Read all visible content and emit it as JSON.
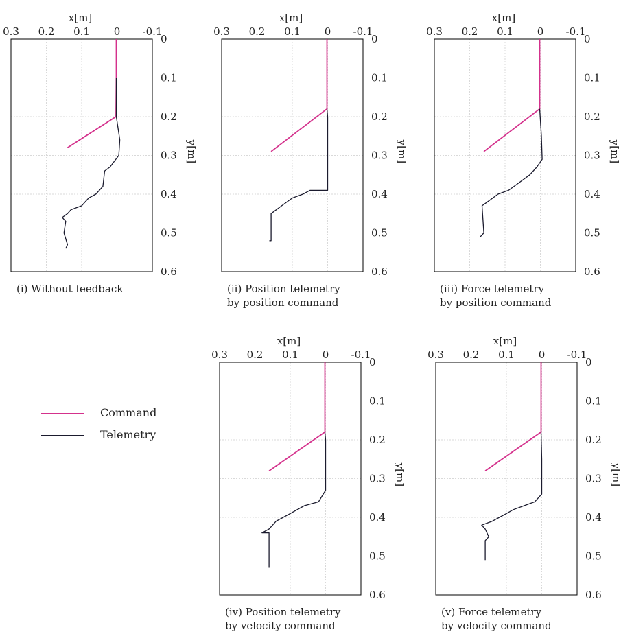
{
  "legend": {
    "command_label": "Command",
    "telemetry_label": "Telemetry"
  },
  "colors": {
    "command": "#d4318c",
    "telemetry": "#1b1b2e",
    "grid": "#d9d9d9",
    "axis": "#000000"
  },
  "chart_data": [
    {
      "type": "line",
      "caption": [
        "(i) Without feedback"
      ],
      "xlabel": "x[m]",
      "ylabel": "y[m]",
      "xlim": [
        0.3,
        -0.1
      ],
      "ylim": [
        0,
        0.6
      ],
      "x_ticks": [
        "0.3",
        "0.2",
        "0.1",
        "0",
        "-0.1"
      ],
      "y_ticks": [
        "0",
        "0.1",
        "0.2",
        "0.3",
        "0.4",
        "0.5",
        "0.6"
      ],
      "series": [
        {
          "role": "command",
          "points": [
            [
              0.002,
              0
            ],
            [
              0.002,
              0.1
            ],
            [
              0.003,
              0.2
            ],
            [
              0.14,
              0.28
            ]
          ]
        },
        {
          "role": "telemetry",
          "points": [
            [
              0.002,
              0.1
            ],
            [
              0.002,
              0.2
            ],
            [
              -0.008,
              0.26
            ],
            [
              -0.005,
              0.3
            ],
            [
              0.02,
              0.33
            ],
            [
              0.035,
              0.34
            ],
            [
              0.04,
              0.38
            ],
            [
              0.06,
              0.4
            ],
            [
              0.08,
              0.41
            ],
            [
              0.1,
              0.43
            ],
            [
              0.13,
              0.44
            ],
            [
              0.14,
              0.45
            ],
            [
              0.155,
              0.46
            ],
            [
              0.145,
              0.47
            ],
            [
              0.15,
              0.5
            ],
            [
              0.14,
              0.53
            ],
            [
              0.145,
              0.54
            ]
          ]
        }
      ]
    },
    {
      "type": "line",
      "caption": [
        "(ii) Position telemetry",
        "by position command"
      ],
      "xlabel": "x[m]",
      "ylabel": "y[m]",
      "xlim": [
        0.3,
        -0.1
      ],
      "ylim": [
        0,
        0.6
      ],
      "x_ticks": [
        "0.3",
        "0.2",
        "0.1",
        "0",
        "-0.1"
      ],
      "y_ticks": [
        "0",
        "0.1",
        "0.2",
        "0.3",
        "0.4",
        "0.5",
        "0.6"
      ],
      "series": [
        {
          "role": "command",
          "points": [
            [
              0.002,
              0
            ],
            [
              0.002,
              0.18
            ],
            [
              0.16,
              0.29
            ]
          ]
        },
        {
          "role": "telemetry",
          "points": [
            [
              0.002,
              0.18
            ],
            [
              0.0,
              0.2
            ],
            [
              0.0,
              0.39
            ],
            [
              0.05,
              0.39
            ],
            [
              0.07,
              0.4
            ],
            [
              0.1,
              0.41
            ],
            [
              0.13,
              0.43
            ],
            [
              0.16,
              0.45
            ],
            [
              0.16,
              0.52
            ],
            [
              0.165,
              0.52
            ]
          ]
        }
      ]
    },
    {
      "type": "line",
      "caption": [
        "(iii) Force telemetry",
        "by position command"
      ],
      "xlabel": "x[m]",
      "ylabel": "y[m]",
      "xlim": [
        0.3,
        -0.1
      ],
      "ylim": [
        0,
        0.6
      ],
      "x_ticks": [
        "0.3",
        "0.2",
        "0.1",
        "0",
        "-0.1"
      ],
      "y_ticks": [
        "0",
        "0.1",
        "0.2",
        "0.3",
        "0.4",
        "0.5",
        "0.6"
      ],
      "series": [
        {
          "role": "command",
          "points": [
            [
              0.002,
              0
            ],
            [
              0.002,
              0.18
            ],
            [
              0.16,
              0.29
            ]
          ]
        },
        {
          "role": "telemetry",
          "points": [
            [
              0.002,
              0.18
            ],
            [
              -0.003,
              0.25
            ],
            [
              -0.005,
              0.31
            ],
            [
              0.01,
              0.33
            ],
            [
              0.03,
              0.35
            ],
            [
              0.06,
              0.37
            ],
            [
              0.09,
              0.39
            ],
            [
              0.12,
              0.4
            ],
            [
              0.15,
              0.42
            ],
            [
              0.165,
              0.43
            ],
            [
              0.16,
              0.5
            ],
            [
              0.17,
              0.51
            ]
          ]
        }
      ]
    },
    {
      "type": "line",
      "caption": [
        "(iv) Position telemetry",
        "by velocity command"
      ],
      "xlabel": "x[m]",
      "ylabel": "y[m]",
      "xlim": [
        0.3,
        -0.1
      ],
      "ylim": [
        0,
        0.6
      ],
      "x_ticks": [
        "0.3",
        "0.2",
        "0.1",
        "0",
        "-0.1"
      ],
      "y_ticks": [
        "0",
        "0.1",
        "0.2",
        "0.3",
        "0.4",
        "0.5",
        "0.6"
      ],
      "series": [
        {
          "role": "command",
          "points": [
            [
              0.002,
              0
            ],
            [
              0.002,
              0.18
            ],
            [
              0.16,
              0.28
            ]
          ]
        },
        {
          "role": "telemetry",
          "points": [
            [
              0.002,
              0.18
            ],
            [
              0.0,
              0.2
            ],
            [
              0.0,
              0.33
            ],
            [
              0.02,
              0.36
            ],
            [
              0.06,
              0.37
            ],
            [
              0.1,
              0.39
            ],
            [
              0.12,
              0.4
            ],
            [
              0.14,
              0.41
            ],
            [
              0.16,
              0.43
            ],
            [
              0.18,
              0.44
            ],
            [
              0.16,
              0.44
            ],
            [
              0.16,
              0.53
            ]
          ]
        }
      ]
    },
    {
      "type": "line",
      "caption": [
        "(v) Force telemetry",
        "by velocity command"
      ],
      "xlabel": "x[m]",
      "ylabel": "y[m]",
      "xlim": [
        0.3,
        -0.1
      ],
      "ylim": [
        0,
        0.6
      ],
      "x_ticks": [
        "0.3",
        "0.2",
        "0.1",
        "0",
        "-0.1"
      ],
      "y_ticks": [
        "0",
        "0.1",
        "0.2",
        "0.3",
        "0.4",
        "0.5",
        "0.6"
      ],
      "series": [
        {
          "role": "command",
          "points": [
            [
              0.002,
              0
            ],
            [
              0.002,
              0.18
            ],
            [
              0.16,
              0.28
            ]
          ]
        },
        {
          "role": "telemetry",
          "points": [
            [
              0.002,
              0.18
            ],
            [
              0.0,
              0.25
            ],
            [
              0.0,
              0.34
            ],
            [
              0.02,
              0.36
            ],
            [
              0.05,
              0.37
            ],
            [
              0.08,
              0.38
            ],
            [
              0.1,
              0.39
            ],
            [
              0.12,
              0.4
            ],
            [
              0.14,
              0.41
            ],
            [
              0.17,
              0.42
            ],
            [
              0.16,
              0.43
            ],
            [
              0.15,
              0.45
            ],
            [
              0.16,
              0.46
            ],
            [
              0.16,
              0.51
            ]
          ]
        }
      ]
    }
  ]
}
